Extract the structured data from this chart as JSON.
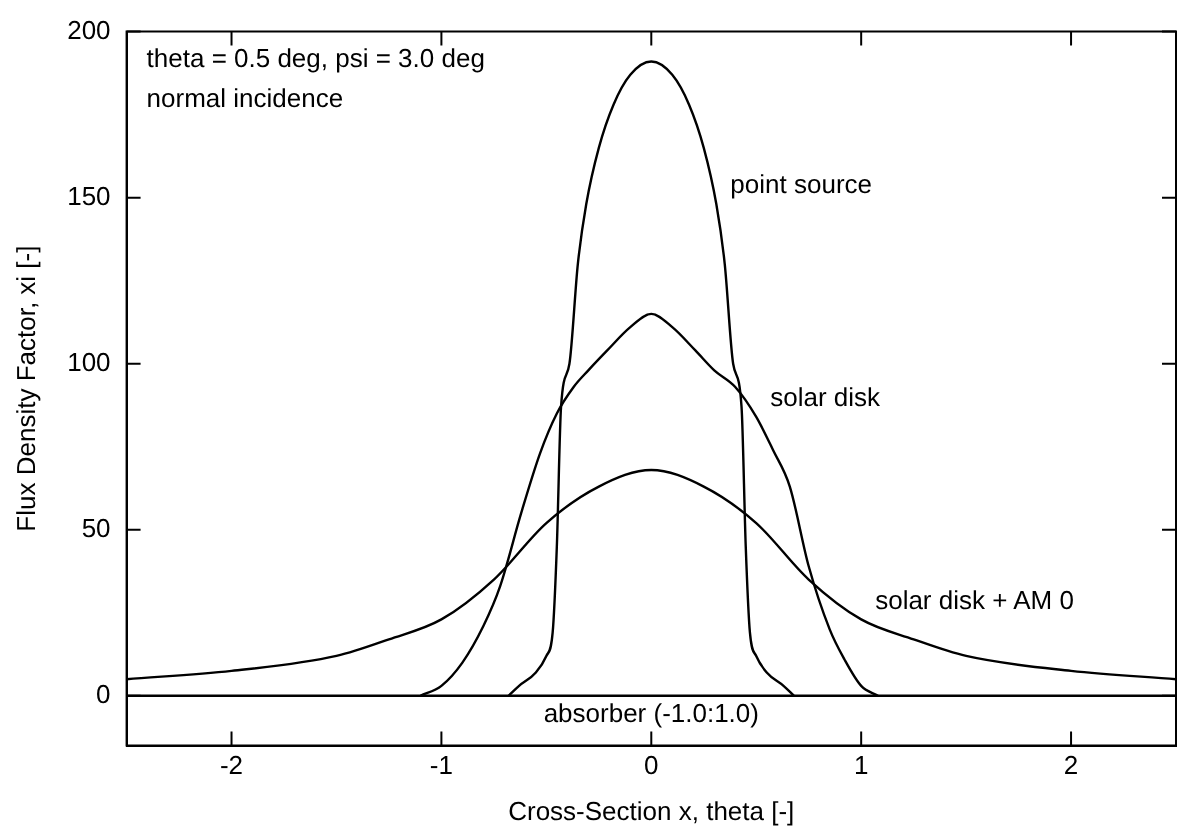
{
  "chart_data": {
    "type": "line",
    "xlabel": "Cross-Section x, theta [-]",
    "ylabel": "Flux Density Factor, xi [-]",
    "xlim": [
      -2.5,
      2.5
    ],
    "xticks": [
      -2,
      -1,
      0,
      1,
      2
    ],
    "ylim": [
      -15,
      200
    ],
    "yticks": [
      0,
      50,
      100,
      150,
      200
    ],
    "grid": false,
    "legend": false,
    "marker": "none",
    "line_style": "solid",
    "annotations": [
      "theta = 0.5 deg, psi = 3.0 deg",
      "normal incidence",
      {
        "text": "point source",
        "x": 0.31,
        "y": 148
      },
      {
        "text": "solar disk",
        "x": 0.5,
        "y": 84
      },
      {
        "text": "solar disk + AM 0",
        "x": 1,
        "y": 23
      }
    ],
    "series": [
      {
        "color": "#000000",
        "x": [
          -0.68,
          -0.63,
          -0.55,
          -0.5,
          -0.47,
          -0.45,
          -0.43,
          -0.39,
          -0.35,
          -0.31,
          -0.25,
          -0.18,
          -0.1,
          0,
          0.1,
          0.18,
          0.25,
          0.31,
          0.35,
          0.39,
          0.43,
          0.45,
          0.47,
          0.5,
          0.55,
          0.63,
          0.68
        ],
        "values": [
          0,
          3,
          7,
          12,
          19,
          45,
          87,
          100,
          130,
          148,
          165,
          178,
          187,
          191,
          187,
          178,
          165,
          148,
          130,
          100,
          87,
          45,
          19,
          12,
          7,
          3,
          0
        ]
      },
      {
        "color": "#000000",
        "x": [
          -1.1,
          -1.0,
          -0.9,
          -0.8,
          -0.72,
          -0.62,
          -0.53,
          -0.45,
          -0.37,
          -0.3,
          -0.21,
          -0.1,
          0,
          0.1,
          0.21,
          0.3,
          0.4,
          0.5,
          0.58,
          0.66,
          0.75,
          0.85,
          0.92,
          1.0,
          1.08
        ],
        "values": [
          0,
          3,
          10,
          21,
          33,
          55,
          73,
          85,
          93,
          98,
          104,
          111,
          115,
          111,
          104,
          98,
          93,
          84,
          74,
          63,
          39,
          20,
          11,
          3,
          0
        ]
      },
      {
        "color": "#000000",
        "x": [
          -2.5,
          -2,
          -1.5,
          -1.25,
          -1,
          -0.75,
          -0.5,
          -0.25,
          0,
          0.25,
          0.5,
          0.75,
          1,
          1.25,
          1.5,
          2,
          2.5
        ],
        "values": [
          5,
          7.5,
          12,
          17,
          23,
          35,
          52,
          63,
          68,
          63,
          52,
          35,
          23,
          17,
          12,
          7.5,
          5
        ]
      },
      {
        "name": "absorber (-1.0:1.0)",
        "color": "#000000",
        "x": [
          -2.5,
          2.5
        ],
        "values": [
          0,
          0
        ]
      }
    ]
  }
}
